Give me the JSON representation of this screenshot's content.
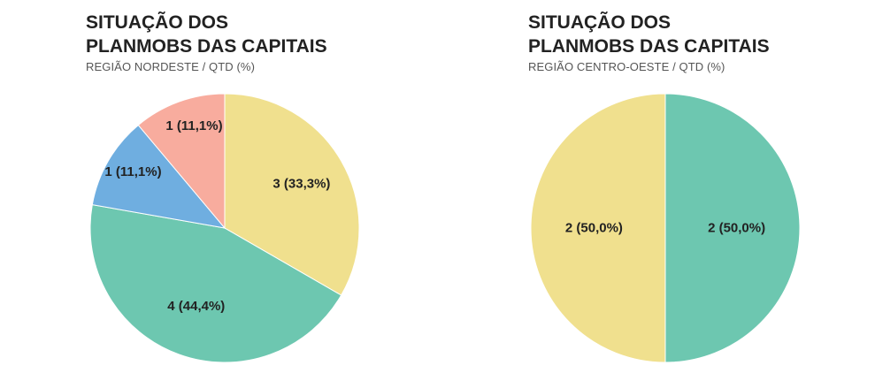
{
  "chart_data": [
    {
      "type": "pie",
      "title_lines": [
        "SITUAÇÃO DOS",
        "PLANMOBS DAS CAPITAIS"
      ],
      "subtitle": "REGIÃO NORDESTE / QTD (%)",
      "slices": [
        {
          "value": 3,
          "percent": 33.3,
          "label": "3 (33,3%)",
          "color": "#F0E08E"
        },
        {
          "value": 4,
          "percent": 44.4,
          "label": "4 (44,4%)",
          "color": "#6DC7B0"
        },
        {
          "value": 1,
          "percent": 11.1,
          "label": "1 (11,1%)",
          "color": "#6FAEE0"
        },
        {
          "value": 1,
          "percent": 11.1,
          "label": "1 (11,1%)",
          "color": "#F8AC9E"
        }
      ]
    },
    {
      "type": "pie",
      "title_lines": [
        "SITUAÇÃO DOS",
        "PLANMOBS DAS CAPITAIS"
      ],
      "subtitle": "REGIÃO CENTRO-OESTE / QTD (%)",
      "slices": [
        {
          "value": 2,
          "percent": 50.0,
          "label": "2 (50,0%)",
          "color": "#6DC7B0"
        },
        {
          "value": 2,
          "percent": 50.0,
          "label": "2 (50,0%)",
          "color": "#F0E08E"
        }
      ]
    }
  ]
}
